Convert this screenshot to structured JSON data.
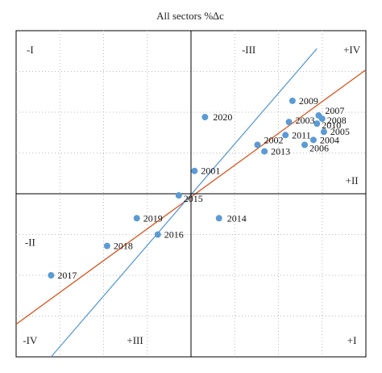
{
  "chart_data": {
    "type": "scatter",
    "title": "All sectors %∆c",
    "xlabel": "",
    "ylabel": "",
    "xlim": [
      -1,
      1
    ],
    "ylim": [
      -1,
      1
    ],
    "grid": true,
    "axis_ticks": false,
    "quadrant_labels": [
      {
        "text": "-I",
        "x": -0.92,
        "y": 0.88
      },
      {
        "text": "-III",
        "x": 0.33,
        "y": 0.88
      },
      {
        "text": "+IV",
        "x": 0.92,
        "y": 0.88
      },
      {
        "text": "+II",
        "x": 0.92,
        "y": 0.08
      },
      {
        "text": "-II",
        "x": -0.92,
        "y": -0.3
      },
      {
        "text": "-IV",
        "x": -0.92,
        "y": -0.9
      },
      {
        "text": "+III",
        "x": -0.32,
        "y": -0.9
      },
      {
        "text": "+I",
        "x": 0.92,
        "y": -0.9
      }
    ],
    "series": [
      {
        "points": [
          {
            "label": "2001",
            "x": 0.02,
            "y": 0.14
          },
          {
            "label": "2002",
            "x": 0.38,
            "y": 0.3
          },
          {
            "label": "2003",
            "x": 0.56,
            "y": 0.44
          },
          {
            "label": "2004",
            "x": 0.7,
            "y": 0.33
          },
          {
            "label": "2005",
            "x": 0.76,
            "y": 0.38
          },
          {
            "label": "2006",
            "x": 0.65,
            "y": 0.3
          },
          {
            "label": "2007",
            "x": 0.73,
            "y": 0.48
          },
          {
            "label": "2008",
            "x": 0.75,
            "y": 0.46
          },
          {
            "label": "2009",
            "x": 0.58,
            "y": 0.57
          },
          {
            "label": "2010",
            "x": 0.72,
            "y": 0.43
          },
          {
            "label": "2011",
            "x": 0.54,
            "y": 0.36
          },
          {
            "label": "2013",
            "x": 0.42,
            "y": 0.26
          },
          {
            "label": "2014",
            "x": 0.16,
            "y": -0.15
          },
          {
            "label": "2015",
            "x": -0.07,
            "y": -0.01
          },
          {
            "label": "2016",
            "x": -0.19,
            "y": -0.25
          },
          {
            "label": "2017",
            "x": -0.8,
            "y": -0.5
          },
          {
            "label": "2018",
            "x": -0.48,
            "y": -0.32
          },
          {
            "label": "2019",
            "x": -0.31,
            "y": -0.15
          },
          {
            "label": "2020",
            "x": 0.08,
            "y": 0.47
          }
        ]
      }
    ],
    "lines": [
      {
        "color": "#d9531e",
        "x1": -1,
        "y1": -0.8,
        "x2": 1,
        "y2": 0.76
      },
      {
        "color": "#5b9bd5",
        "x1": -0.8,
        "y1": -1,
        "x2": 0.72,
        "y2": 0.89
      }
    ],
    "colors": {
      "points": "#5b9bd5",
      "axes": "#000000",
      "grid": "#bbbbbb"
    }
  }
}
